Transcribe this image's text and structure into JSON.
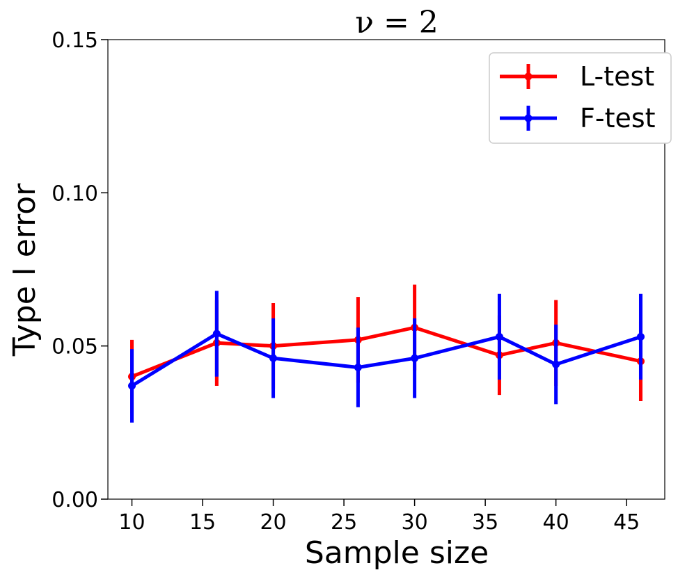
{
  "chart_data": {
    "type": "line",
    "title": "ν = 2",
    "xlabel": "Sample size",
    "ylabel": "Type I error",
    "xlim": [
      8.3,
      47.7
    ],
    "ylim": [
      0,
      0.15
    ],
    "xticks": [
      10,
      15,
      20,
      25,
      30,
      35,
      40,
      45
    ],
    "xtick_labels": [
      "10",
      "15",
      "20",
      "25",
      "30",
      "35",
      "40",
      "45"
    ],
    "yticks": [
      0.0,
      0.05,
      0.1,
      0.15
    ],
    "ytick_labels": [
      "0.00",
      "0.05",
      "0.10",
      "0.15"
    ],
    "grid": false,
    "legend_position": "top-right",
    "series": [
      {
        "name": "L-test",
        "color": "#ff0000",
        "x": [
          10,
          16,
          20,
          26,
          30,
          36,
          40,
          46
        ],
        "values": [
          0.04,
          0.051,
          0.05,
          0.052,
          0.056,
          0.047,
          0.051,
          0.045
        ],
        "err_low": [
          0.028,
          0.037,
          0.036,
          0.038,
          0.042,
          0.034,
          0.037,
          0.032
        ],
        "err_high": [
          0.052,
          0.065,
          0.064,
          0.066,
          0.07,
          0.06,
          0.065,
          0.058
        ]
      },
      {
        "name": "F-test",
        "color": "#0000ff",
        "x": [
          10,
          16,
          20,
          26,
          30,
          36,
          40,
          46
        ],
        "values": [
          0.037,
          0.054,
          0.046,
          0.043,
          0.046,
          0.053,
          0.044,
          0.053
        ],
        "err_low": [
          0.025,
          0.04,
          0.033,
          0.03,
          0.033,
          0.039,
          0.031,
          0.039
        ],
        "err_high": [
          0.049,
          0.068,
          0.059,
          0.056,
          0.059,
          0.067,
          0.057,
          0.067
        ]
      }
    ]
  }
}
